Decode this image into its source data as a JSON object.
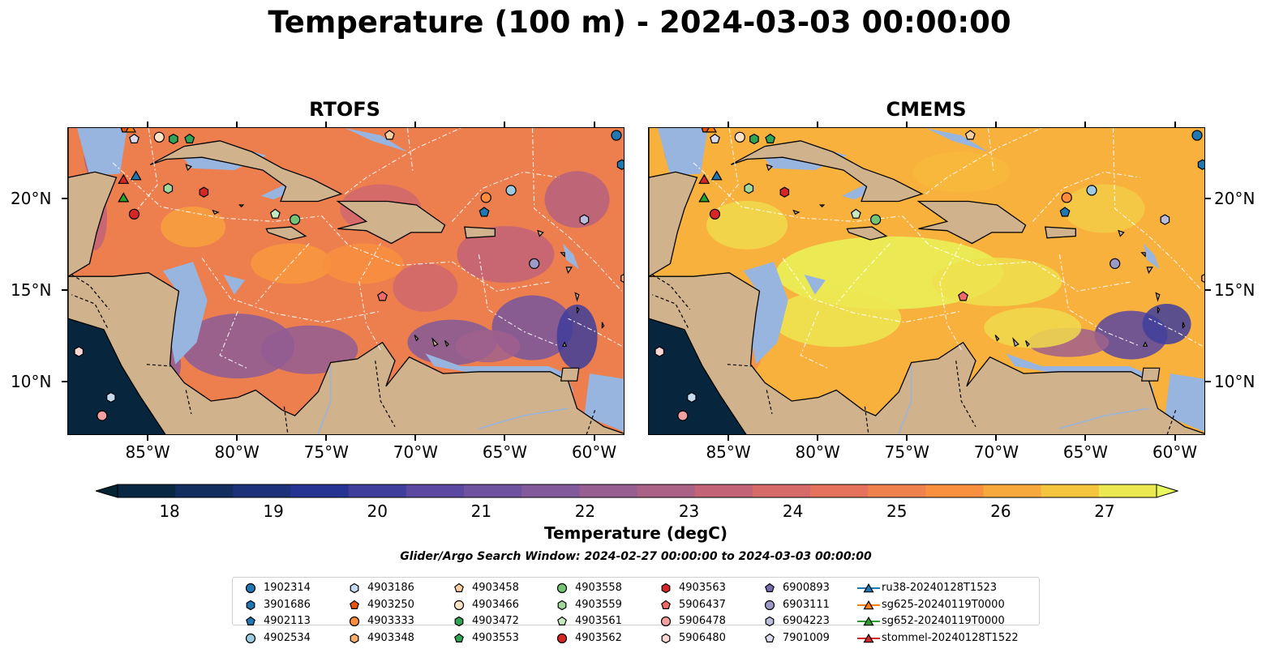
{
  "title": "Temperature (100 m) - 2024-03-03 00:00:00",
  "panels": [
    {
      "title": "RTOFS"
    },
    {
      "title": "CMEMS"
    }
  ],
  "lat_labels": [
    "20°N",
    "15°N",
    "10°N"
  ],
  "lon_labels": [
    "85°W",
    "80°W",
    "75°W",
    "70°W",
    "65°W",
    "60°W"
  ],
  "colorbar": {
    "label": "Temperature (degC)",
    "ticks": [
      "18",
      "19",
      "20",
      "21",
      "22",
      "23",
      "24",
      "25",
      "26",
      "27"
    ],
    "range": [
      18,
      27
    ],
    "extend": "both"
  },
  "search_window": "Glider/Argo Search Window: 2024-02-27 00:00:00 to 2024-03-03 00:00:00",
  "legend": [
    {
      "label": "1902314",
      "marker": "circle",
      "color": "#1f77b4"
    },
    {
      "label": "3901686",
      "marker": "hexagon",
      "color": "#1f77b4"
    },
    {
      "label": "4902113",
      "marker": "pentagon",
      "color": "#1f77b4"
    },
    {
      "label": "4902534",
      "marker": "circle",
      "color": "#9ecae1"
    },
    {
      "label": "4903186",
      "marker": "hexagon",
      "color": "#c6dbef"
    },
    {
      "label": "4903250",
      "marker": "pentagon",
      "color": "#e6550d"
    },
    {
      "label": "4903333",
      "marker": "circle",
      "color": "#fd8d3c"
    },
    {
      "label": "4903348",
      "marker": "hexagon",
      "color": "#fdae6b"
    },
    {
      "label": "4903458",
      "marker": "pentagon",
      "color": "#fdd0a2"
    },
    {
      "label": "4903466",
      "marker": "circle",
      "color": "#ffe3c4"
    },
    {
      "label": "4903472",
      "marker": "hexagon",
      "color": "#31a354"
    },
    {
      "label": "4903553",
      "marker": "pentagon",
      "color": "#31a354"
    },
    {
      "label": "4903558",
      "marker": "circle",
      "color": "#74c476"
    },
    {
      "label": "4903559",
      "marker": "hexagon",
      "color": "#a1d99b"
    },
    {
      "label": "4903561",
      "marker": "pentagon",
      "color": "#c7e9c0"
    },
    {
      "label": "4903562",
      "marker": "circle",
      "color": "#d62728"
    },
    {
      "label": "4903563",
      "marker": "hexagon",
      "color": "#d62728"
    },
    {
      "label": "5906437",
      "marker": "pentagon",
      "color": "#f06a6a"
    },
    {
      "label": "5906478",
      "marker": "circle",
      "color": "#f4a0a0"
    },
    {
      "label": "5906480",
      "marker": "hexagon",
      "color": "#fcd5d5"
    },
    {
      "label": "6900893",
      "marker": "pentagon",
      "color": "#756bb1"
    },
    {
      "label": "6903111",
      "marker": "circle",
      "color": "#9e9ac8"
    },
    {
      "label": "6904223",
      "marker": "hexagon",
      "color": "#bcbddc"
    },
    {
      "label": "7901009",
      "marker": "pentagon",
      "color": "#dadaeb"
    },
    {
      "label": "ru38-20240128T1523",
      "marker": "triangle",
      "color": "#1f77b4"
    },
    {
      "label": "sg625-20240119T0000",
      "marker": "triangle",
      "color": "#ff7f0e"
    },
    {
      "label": "sg652-20240119T0000",
      "marker": "triangle",
      "color": "#2ca02c"
    },
    {
      "label": "stommel-20240128T1522",
      "marker": "triangle",
      "color": "#d62728"
    }
  ]
}
